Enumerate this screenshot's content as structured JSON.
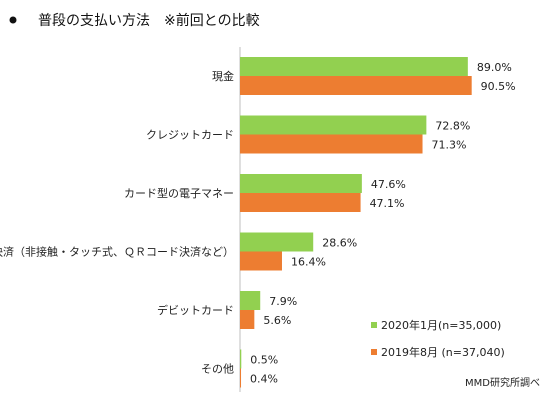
{
  "header": {
    "title": "普段の支払い方法　※前回との比較"
  },
  "credit": "MMD研究所調べ",
  "colors": {
    "series_2020": "#92d050",
    "series_2019": "#ed7d31",
    "axis": "#bfbfbf"
  },
  "chart_data": {
    "type": "bar",
    "orientation": "horizontal",
    "title": "普段の支払い方法　※前回との比較",
    "categories": [
      "現金",
      "クレジットカード",
      "カード型の電子マネー",
      "スマホ決済（非接触・タッチ式、ＱＲコード決済など）",
      "デビットカード",
      "その他"
    ],
    "series": [
      {
        "name": "2020年1月(n=35,000)",
        "values": [
          89.0,
          72.8,
          47.6,
          28.6,
          7.9,
          0.5
        ],
        "labels": [
          "89.0%",
          "72.8%",
          "47.6%",
          "28.6%",
          "7.9%",
          "0.5%"
        ]
      },
      {
        "name": "2019年8月 (n=37,040)",
        "values": [
          90.5,
          71.3,
          47.1,
          16.4,
          5.6,
          0.4
        ],
        "labels": [
          "90.5%",
          "71.3%",
          "47.1%",
          "16.4%",
          "5.6%",
          "0.4%"
        ]
      }
    ],
    "xlim": [
      0,
      100
    ],
    "grid": false,
    "legend_position": "bottom-right"
  }
}
